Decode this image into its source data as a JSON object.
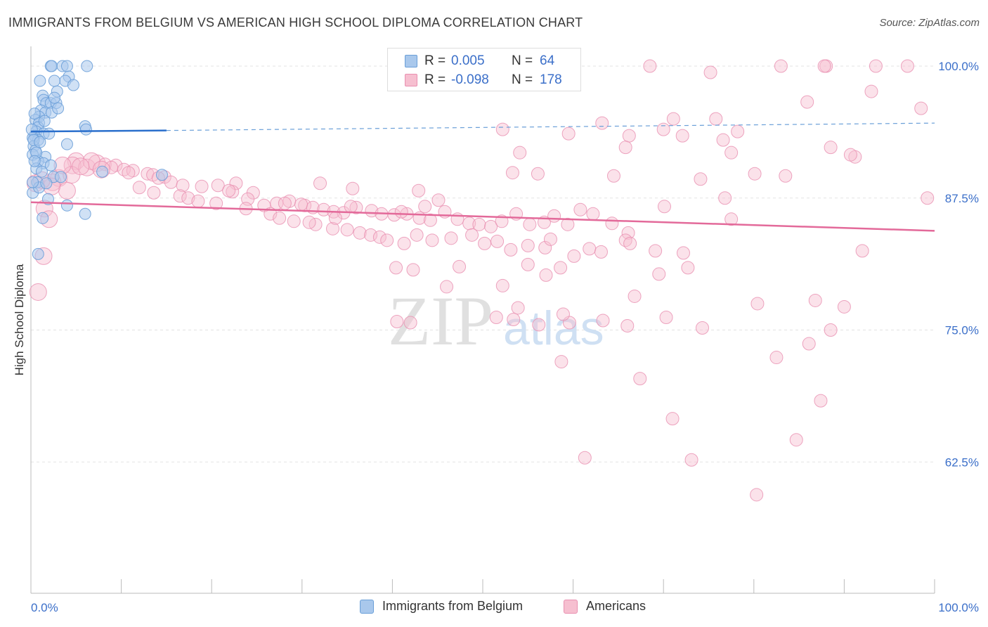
{
  "title": "IMMIGRANTS FROM BELGIUM VS AMERICAN HIGH SCHOOL DIPLOMA CORRELATION CHART",
  "source": "Source: ZipAtlas.com",
  "watermark": {
    "zip": "ZIP",
    "atlas": "atlas"
  },
  "legend": {
    "rows": [
      {
        "r_label": "R =",
        "r_value": "0.005",
        "n_label": "N =",
        "n_value": "64"
      },
      {
        "r_label": "R =",
        "r_value": "-0.098",
        "n_label": "N =",
        "n_value": "178"
      }
    ]
  },
  "bottom_legend": {
    "series1": "Immigrants from Belgium",
    "series2": "Americans"
  },
  "colors": {
    "blue_fill": "#a9c8ec",
    "blue_stroke": "#6a9fd8",
    "blue_line": "#2a6fcc",
    "pink_fill": "#f6bfd0",
    "pink_stroke": "#e98fb0",
    "pink_line": "#e36a9a",
    "grid": "#e3e3e3",
    "tick_text": "#3b6fc9"
  },
  "chart_data": {
    "type": "scatter",
    "title": "IMMIGRANTS FROM BELGIUM VS AMERICAN HIGH SCHOOL DIPLOMA CORRELATION CHART",
    "xlabel": "",
    "ylabel": "High School Diploma",
    "xlim": [
      0,
      100
    ],
    "ylim": [
      50,
      101
    ],
    "x_tick_labels": [
      "0.0%",
      "100.0%"
    ],
    "y_ticks": [
      100.0,
      87.5,
      75.0,
      62.5
    ],
    "y_tick_labels": [
      "100.0%",
      "87.5%",
      "75.0%",
      "62.5%"
    ],
    "series": [
      {
        "name": "Immigrants from Belgium",
        "R": 0.005,
        "N": 64,
        "trend": {
          "x0": 0,
          "y0": 93.8,
          "x1": 15,
          "y1": 93.9,
          "dash_to_x": 100,
          "dash_to_y": 94.6
        },
        "points": [
          [
            2.2,
            100
          ],
          [
            2.3,
            100
          ],
          [
            3.5,
            100
          ],
          [
            4.0,
            100
          ],
          [
            6.2,
            100
          ],
          [
            4.2,
            99.0
          ],
          [
            3.8,
            98.6
          ],
          [
            1.0,
            98.6
          ],
          [
            2.6,
            98.6
          ],
          [
            4.7,
            98.2
          ],
          [
            2.9,
            97.6
          ],
          [
            1.3,
            97.2
          ],
          [
            1.4,
            96.8
          ],
          [
            1.7,
            96.5
          ],
          [
            2.2,
            96.5
          ],
          [
            2.8,
            96.5
          ],
          [
            1.1,
            95.8
          ],
          [
            1.6,
            95.6
          ],
          [
            2.3,
            95.6
          ],
          [
            0.9,
            95.2
          ],
          [
            0.5,
            94.9
          ],
          [
            0.9,
            94.6
          ],
          [
            0.8,
            94.2
          ],
          [
            6.0,
            94.3
          ],
          [
            6.1,
            94.0
          ],
          [
            0.6,
            93.8
          ],
          [
            1.4,
            93.6
          ],
          [
            0.4,
            93.4
          ],
          [
            0.8,
            93.0
          ],
          [
            0.2,
            93.2
          ],
          [
            4.0,
            92.6
          ],
          [
            0.3,
            92.4
          ],
          [
            0.5,
            92.0
          ],
          [
            0.2,
            91.6
          ],
          [
            1.6,
            91.4
          ],
          [
            0.8,
            91.0
          ],
          [
            1.4,
            90.8
          ],
          [
            2.2,
            90.6
          ],
          [
            0.6,
            90.3
          ],
          [
            7.9,
            90.0
          ],
          [
            14.5,
            89.7
          ],
          [
            2.5,
            89.5
          ],
          [
            3.3,
            89.5
          ],
          [
            0.7,
            89.0
          ],
          [
            0.2,
            88.0
          ],
          [
            1.9,
            87.4
          ],
          [
            4.0,
            86.8
          ],
          [
            6.0,
            86.0
          ],
          [
            1.3,
            85.6
          ],
          [
            0.8,
            82.2
          ],
          [
            0.1,
            94.0
          ],
          [
            0.3,
            93.0
          ],
          [
            0.4,
            95.5
          ],
          [
            1.0,
            92.8
          ],
          [
            1.5,
            94.8
          ],
          [
            2.0,
            93.6
          ],
          [
            0.6,
            91.8
          ],
          [
            1.2,
            90.0
          ],
          [
            0.9,
            88.5
          ],
          [
            1.7,
            88.9
          ],
          [
            3.0,
            96.0
          ],
          [
            2.6,
            97.0
          ],
          [
            0.4,
            91.0
          ],
          [
            0.2,
            89.0
          ]
        ]
      },
      {
        "name": "Americans",
        "R": -0.098,
        "N": 178,
        "trend": {
          "x0": 0,
          "y0": 87.1,
          "x1": 100,
          "y1": 84.4
        },
        "points": [
          [
            68.5,
            100
          ],
          [
            83.0,
            100
          ],
          [
            88.0,
            100
          ],
          [
            87.8,
            100
          ],
          [
            93.5,
            100
          ],
          [
            97.0,
            100
          ],
          [
            75.2,
            99.4
          ],
          [
            93.0,
            97.6
          ],
          [
            85.9,
            96.6
          ],
          [
            98.5,
            96.0
          ],
          [
            71.1,
            95.0
          ],
          [
            75.8,
            95.0
          ],
          [
            63.2,
            94.6
          ],
          [
            52.2,
            94.0
          ],
          [
            59.5,
            93.6
          ],
          [
            70.0,
            94.0
          ],
          [
            72.1,
            93.4
          ],
          [
            66.2,
            93.4
          ],
          [
            78.2,
            93.8
          ],
          [
            76.6,
            93.0
          ],
          [
            88.5,
            92.3
          ],
          [
            65.8,
            92.3
          ],
          [
            54.1,
            91.8
          ],
          [
            77.5,
            91.8
          ],
          [
            91.2,
            91.4
          ],
          [
            90.7,
            91.6
          ],
          [
            5.0,
            91.0
          ],
          [
            4.6,
            90.6
          ],
          [
            6.2,
            90.4
          ],
          [
            7.3,
            90.8
          ],
          [
            8.2,
            90.7
          ],
          [
            9.4,
            90.6
          ],
          [
            10.3,
            90.2
          ],
          [
            11.3,
            90.1
          ],
          [
            12.9,
            89.8
          ],
          [
            13.5,
            89.7
          ],
          [
            14.8,
            89.5
          ],
          [
            3.1,
            89.4
          ],
          [
            2.4,
            89.0
          ],
          [
            8.9,
            90.4
          ],
          [
            10.8,
            89.9
          ],
          [
            14.1,
            89.4
          ],
          [
            15.5,
            89.0
          ],
          [
            16.8,
            88.7
          ],
          [
            18.9,
            88.6
          ],
          [
            20.7,
            88.7
          ],
          [
            22.7,
            88.9
          ],
          [
            22.3,
            88.1
          ],
          [
            21.9,
            88.2
          ],
          [
            24.6,
            88.0
          ],
          [
            32.0,
            88.9
          ],
          [
            35.6,
            88.4
          ],
          [
            42.9,
            88.2
          ],
          [
            53.3,
            89.9
          ],
          [
            56.1,
            89.8
          ],
          [
            64.5,
            89.6
          ],
          [
            80.1,
            89.8
          ],
          [
            83.5,
            89.6
          ],
          [
            74.1,
            89.3
          ],
          [
            76.8,
            87.5
          ],
          [
            4.0,
            88.2
          ],
          [
            1.5,
            86.5
          ],
          [
            12.0,
            88.5
          ],
          [
            13.6,
            88.0
          ],
          [
            16.5,
            87.7
          ],
          [
            17.4,
            87.5
          ],
          [
            18.5,
            87.2
          ],
          [
            20.5,
            87.0
          ],
          [
            24.0,
            87.4
          ],
          [
            25.8,
            86.8
          ],
          [
            27.2,
            87.0
          ],
          [
            28.6,
            87.2
          ],
          [
            30.3,
            86.8
          ],
          [
            31.2,
            86.6
          ],
          [
            32.4,
            86.4
          ],
          [
            33.5,
            86.2
          ],
          [
            34.6,
            86.1
          ],
          [
            36.0,
            86.6
          ],
          [
            37.7,
            86.3
          ],
          [
            38.8,
            86.0
          ],
          [
            40.2,
            85.9
          ],
          [
            41.6,
            86.0
          ],
          [
            43.0,
            85.6
          ],
          [
            44.2,
            85.4
          ],
          [
            45.8,
            86.2
          ],
          [
            47.2,
            85.5
          ],
          [
            48.5,
            85.1
          ],
          [
            49.6,
            85.0
          ],
          [
            50.9,
            84.8
          ],
          [
            52.1,
            85.3
          ],
          [
            53.7,
            86.0
          ],
          [
            55.2,
            85.0
          ],
          [
            56.8,
            85.2
          ],
          [
            57.9,
            85.8
          ],
          [
            59.4,
            85.0
          ],
          [
            60.8,
            86.4
          ],
          [
            62.2,
            86.0
          ],
          [
            64.3,
            85.1
          ],
          [
            66.1,
            84.2
          ],
          [
            70.1,
            86.7
          ],
          [
            26.5,
            86.0
          ],
          [
            27.5,
            85.6
          ],
          [
            29.1,
            85.3
          ],
          [
            31.5,
            85.0
          ],
          [
            33.4,
            84.6
          ],
          [
            35.0,
            84.5
          ],
          [
            36.4,
            84.2
          ],
          [
            37.6,
            84.0
          ],
          [
            38.6,
            83.8
          ],
          [
            39.4,
            83.5
          ],
          [
            41.3,
            83.2
          ],
          [
            42.7,
            84.0
          ],
          [
            44.4,
            83.5
          ],
          [
            46.5,
            83.7
          ],
          [
            48.8,
            84.0
          ],
          [
            50.2,
            83.2
          ],
          [
            51.6,
            83.4
          ],
          [
            53.1,
            82.6
          ],
          [
            55.0,
            83.0
          ],
          [
            56.9,
            82.8
          ],
          [
            57.5,
            83.6
          ],
          [
            60.1,
            82.0
          ],
          [
            61.8,
            82.7
          ],
          [
            63.1,
            82.4
          ],
          [
            65.8,
            83.5
          ],
          [
            66.3,
            83.2
          ],
          [
            69.1,
            82.5
          ],
          [
            72.2,
            82.3
          ],
          [
            77.5,
            85.5
          ],
          [
            23.8,
            86.5
          ],
          [
            28.1,
            87.0
          ],
          [
            29.9,
            86.9
          ],
          [
            30.8,
            85.2
          ],
          [
            33.7,
            85.6
          ],
          [
            35.4,
            86.7
          ],
          [
            41.0,
            86.2
          ],
          [
            43.6,
            86.7
          ],
          [
            45.1,
            87.3
          ],
          [
            1.4,
            82.0
          ],
          [
            0.8,
            78.6
          ],
          [
            40.4,
            80.9
          ],
          [
            42.3,
            80.7
          ],
          [
            47.4,
            81.0
          ],
          [
            55.0,
            81.2
          ],
          [
            57.0,
            80.2
          ],
          [
            58.6,
            80.9
          ],
          [
            69.5,
            80.3
          ],
          [
            72.7,
            80.9
          ],
          [
            92.0,
            82.5
          ],
          [
            66.8,
            78.2
          ],
          [
            52.2,
            79.2
          ],
          [
            51.5,
            76.2
          ],
          [
            53.4,
            76.0
          ],
          [
            56.2,
            75.5
          ],
          [
            63.3,
            75.9
          ],
          [
            66.0,
            75.4
          ],
          [
            70.3,
            76.2
          ],
          [
            74.3,
            75.2
          ],
          [
            80.4,
            77.5
          ],
          [
            86.8,
            77.8
          ],
          [
            90.0,
            77.2
          ],
          [
            59.6,
            75.7
          ],
          [
            58.9,
            76.5
          ],
          [
            46.0,
            79.1
          ],
          [
            82.5,
            72.4
          ],
          [
            88.5,
            75.0
          ],
          [
            86.1,
            73.7
          ],
          [
            58.7,
            72.0
          ],
          [
            67.4,
            70.4
          ],
          [
            71.0,
            66.6
          ],
          [
            87.4,
            68.3
          ],
          [
            84.7,
            64.6
          ],
          [
            73.1,
            62.7
          ],
          [
            61.3,
            62.9
          ],
          [
            80.3,
            59.4
          ],
          [
            40.5,
            75.8
          ],
          [
            53.9,
            77.1
          ],
          [
            42.0,
            75.7
          ],
          [
            99.2,
            87.5
          ],
          [
            4.5,
            89.7
          ],
          [
            2.3,
            88.6
          ],
          [
            0.5,
            88.9
          ],
          [
            3.5,
            90.6
          ],
          [
            6.7,
            91.0
          ],
          [
            2.0,
            85.5
          ],
          [
            1.2,
            89.2
          ],
          [
            7.8,
            90.2
          ],
          [
            5.5,
            90.5
          ]
        ]
      }
    ]
  }
}
